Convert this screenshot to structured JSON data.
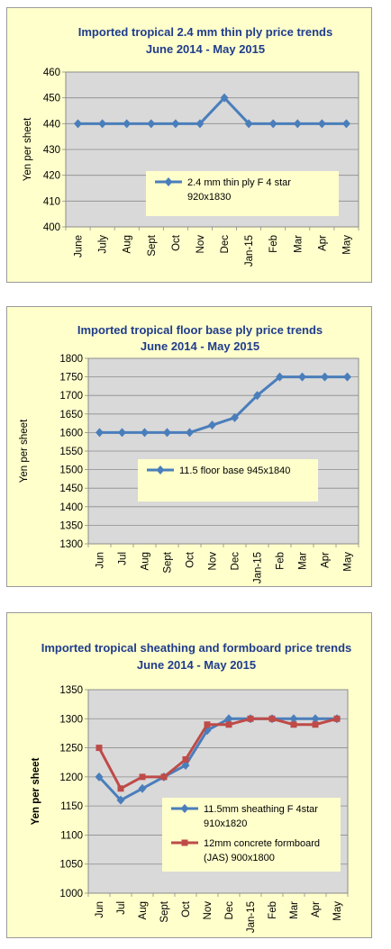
{
  "chart_data": [
    {
      "type": "line",
      "title": "Imported tropical 2.4 mm thin ply price trends",
      "subtitle": "June 2014 - May 2015",
      "ylabel": "Yen per sheet",
      "ylim": [
        400,
        460
      ],
      "yticks": [
        400,
        410,
        420,
        430,
        440,
        450,
        460
      ],
      "grid": true,
      "legend_position": "bottom-right",
      "categories": [
        "June",
        "July",
        "Aug",
        "Sept",
        "Oct",
        "Nov",
        "Dec",
        "Jan-15",
        "Feb",
        "Mar",
        "Apr",
        "May"
      ],
      "series": [
        {
          "name": "2.4 mm thin ply F 4 star 920x1830",
          "legend_lines": [
            "2.4 mm thin ply F 4 star",
            "920x1830"
          ],
          "color": "#4a7ebb",
          "marker": "diamond",
          "values": [
            440,
            440,
            440,
            440,
            440,
            440,
            450,
            440,
            440,
            440,
            440,
            440
          ]
        }
      ]
    },
    {
      "type": "line",
      "title": "Imported tropical floor base ply price trends",
      "subtitle": "June 2014 - May 2015",
      "ylabel": "Yen per sheet",
      "ylim": [
        1300,
        1800
      ],
      "yticks": [
        1300,
        1350,
        1400,
        1450,
        1500,
        1550,
        1600,
        1650,
        1700,
        1750,
        1800
      ],
      "grid": true,
      "legend_position": "center-right",
      "categories": [
        "Jun",
        "Jul",
        "Aug",
        "Sept",
        "Oct",
        "Nov",
        "Dec",
        "Jan-15",
        "Feb",
        "Mar",
        "Apr",
        "May"
      ],
      "series": [
        {
          "name": "11.5 floor base 945x1840",
          "legend_lines": [
            "11.5 floor base 945x1840"
          ],
          "color": "#4a7ebb",
          "marker": "diamond",
          "values": [
            1600,
            1600,
            1600,
            1600,
            1600,
            1620,
            1640,
            1700,
            1750,
            1750,
            1750,
            1750
          ]
        }
      ]
    },
    {
      "type": "line",
      "title": "Imported tropical sheathing and formboard price trends",
      "subtitle": "June 2014 - May 2015",
      "ylabel": "Yen per sheet",
      "ylim": [
        1000,
        1350
      ],
      "yticks": [
        1000,
        1050,
        1100,
        1150,
        1200,
        1250,
        1300,
        1350
      ],
      "grid": true,
      "legend_position": "bottom-right",
      "categories": [
        "Jun",
        "Jul",
        "Aug",
        "Sept",
        "Oct",
        "Nov",
        "Dec",
        "Jan-15",
        "Feb",
        "Mar",
        "Apr",
        "May"
      ],
      "series": [
        {
          "name": "11.5mm sheathing F 4star 910x1820",
          "legend_lines": [
            "11.5mm sheathing F 4star",
            "910x1820"
          ],
          "color": "#4a7ebb",
          "marker": "diamond",
          "values": [
            1200,
            1160,
            1180,
            1200,
            1220,
            1280,
            1300,
            1300,
            1300,
            1300,
            1300,
            1300
          ]
        },
        {
          "name": "12mm concrete formboard (JAS) 900x1800",
          "legend_lines": [
            "12mm concrete formboard",
            "(JAS) 900x1800"
          ],
          "color": "#be4b48",
          "marker": "square",
          "values": [
            1250,
            1180,
            1200,
            1200,
            1230,
            1290,
            1290,
            1300,
            1300,
            1290,
            1290,
            1300
          ]
        }
      ]
    }
  ]
}
